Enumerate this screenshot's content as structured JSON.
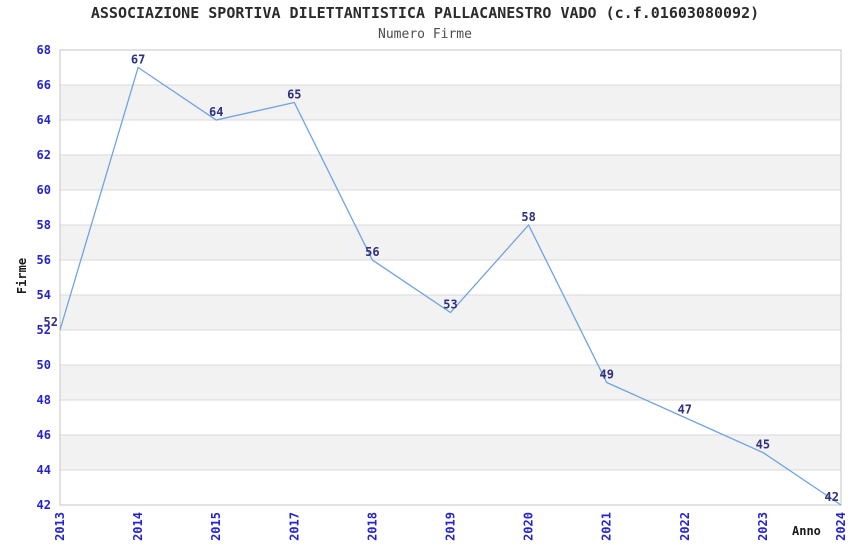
{
  "chart_data": {
    "type": "line",
    "title": "ASSOCIAZIONE SPORTIVA DILETTANTISTICA PALLACANESTRO VADO (c.f.01603080092)",
    "subtitle": "Numero Firme",
    "xlabel": "Anno",
    "ylabel": "Firme",
    "categories": [
      "2013",
      "2014",
      "2015",
      "2017",
      "2018",
      "2019",
      "2020",
      "2021",
      "2022",
      "2023",
      "2024"
    ],
    "values": [
      52,
      67,
      64,
      65,
      56,
      53,
      58,
      49,
      47,
      45,
      42
    ],
    "ylim": [
      42,
      68
    ],
    "ytick_step": 2,
    "ytick_labels": [
      "42",
      "44",
      "46",
      "48",
      "50",
      "52",
      "54",
      "56",
      "58",
      "60",
      "62",
      "64",
      "66",
      "68"
    ],
    "grid": "horizontal-only",
    "legend": "none",
    "line_color": "#6FA3E3",
    "tick_label_color": "#2424CF",
    "data_label_color": "#30307E",
    "band_colors": [
      "#ffffff",
      "#f2f2f2"
    ],
    "grid_color": "#d9d9d9",
    "border_color": "#c6c6c6"
  }
}
